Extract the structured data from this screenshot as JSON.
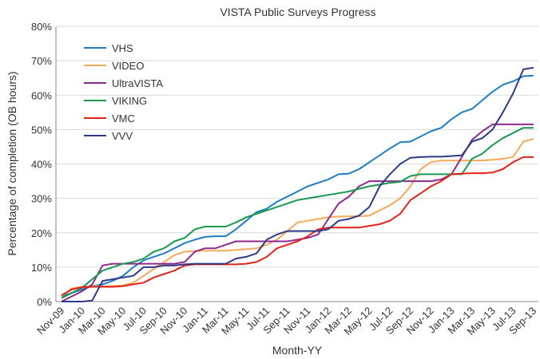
{
  "chart_data": {
    "type": "line",
    "title": "VISTA Public Surveys Progress",
    "x_label": "Month-YY",
    "y_label": "Percentage of completion (OB hours)",
    "categories": [
      "Nov-09",
      null,
      "Jan-10",
      null,
      "Mar-10",
      null,
      "May-10",
      null,
      "Jul-10",
      null,
      "Sep-10",
      null,
      "Nov-10",
      null,
      "Jan-11",
      null,
      "Mar-11",
      null,
      "May-11",
      null,
      "Jul-11",
      null,
      "Sep-11",
      null,
      "Nov-11",
      null,
      "Jan-12",
      null,
      "Mar-12",
      null,
      "May-12",
      null,
      "Jul-12",
      null,
      "Sep-12",
      null,
      "Nov-12",
      null,
      "Jan-13",
      null,
      "Mar-13",
      null,
      "May-13",
      null,
      "Jul-13",
      null,
      "Sep-13"
    ],
    "series": [
      {
        "name": "VHS",
        "color": "#1f7cc4",
        "values": [
          1.5,
          2.5,
          3.5,
          4.5,
          5,
          6,
          7.5,
          10,
          12,
          13,
          14,
          15.5,
          17,
          18,
          18.8,
          19,
          19,
          21,
          23.5,
          26,
          27,
          29,
          30.5,
          32,
          33.5,
          34.5,
          35.5,
          37,
          37.2,
          38.5,
          40.5,
          42.5,
          44.5,
          46.3,
          46.5,
          48,
          49.5,
          50.5,
          53,
          55,
          56,
          58.5,
          61,
          63,
          64,
          65.5,
          65.7
        ]
      },
      {
        "name": "VIDEO",
        "color": "#f5a95a",
        "values": [
          1.5,
          3.8,
          4.3,
          4.5,
          4.5,
          4.5,
          4.7,
          5.5,
          7.5,
          9.5,
          11.5,
          13.5,
          14.5,
          14.7,
          14.8,
          14.8,
          14.8,
          15,
          15.2,
          15.5,
          16.5,
          18,
          20.5,
          23,
          23.5,
          24,
          24.5,
          24.7,
          24.8,
          24.8,
          25,
          26.5,
          28,
          30,
          33.5,
          38.5,
          40.5,
          41,
          41,
          41,
          41,
          41,
          41.2,
          41.5,
          42,
          46.5,
          47.3
        ]
      },
      {
        "name": "UltraVISTA",
        "color": "#8e2a8e",
        "values": [
          0,
          1.5,
          3,
          5,
          10.5,
          11,
          11,
          11,
          11,
          11,
          11,
          11,
          11.5,
          14.5,
          15.5,
          15.5,
          16.5,
          17.5,
          17.5,
          17.5,
          17.5,
          17.5,
          17.5,
          18,
          18.5,
          19.5,
          24,
          28.5,
          30.5,
          33.5,
          35,
          35,
          35,
          35,
          35,
          35,
          35,
          35.5,
          37,
          42,
          47,
          49.5,
          51.5,
          51.5,
          51.5,
          51.5,
          51.5
        ]
      },
      {
        "name": "VIKING",
        "color": "#1a9850",
        "values": [
          1,
          2.5,
          4,
          6.5,
          9,
          10,
          11,
          11.5,
          12.5,
          14.5,
          15.5,
          17.5,
          18.5,
          21,
          21.8,
          21.8,
          21.8,
          23,
          24.5,
          25.5,
          26.5,
          27.5,
          28.5,
          29.5,
          30,
          30.5,
          31,
          31.5,
          32,
          32.8,
          33.5,
          34,
          34.5,
          34.8,
          36.5,
          37,
          37,
          37,
          37,
          37,
          41.5,
          43,
          45.5,
          47.5,
          49,
          50.5,
          50.5
        ]
      },
      {
        "name": "VMC",
        "color": "#e2231a",
        "values": [
          1.8,
          3.5,
          4.2,
          4.3,
          4.3,
          4.3,
          4.5,
          5,
          5.5,
          7,
          8,
          9,
          10.5,
          10.8,
          10.8,
          10.8,
          10.8,
          10.8,
          11,
          11.5,
          13,
          15.5,
          16.5,
          17.5,
          19,
          21,
          21.5,
          21.5,
          21.5,
          21.5,
          22,
          22.5,
          23.5,
          25.5,
          29.5,
          31.5,
          33.5,
          35,
          37,
          37.2,
          37.3,
          37.3,
          37.5,
          38.5,
          40.5,
          42,
          42
        ]
      },
      {
        "name": "VVV",
        "color": "#2e3a87",
        "values": [
          0,
          0,
          0,
          0.3,
          6,
          6.5,
          7,
          7.5,
          10,
          10,
          10.5,
          10.5,
          10.8,
          11,
          11,
          11,
          11,
          12.5,
          13,
          14,
          18,
          19.5,
          20.5,
          20.5,
          20.5,
          20.5,
          21,
          23.5,
          24,
          25,
          27.5,
          33.5,
          37,
          40,
          41.8,
          42,
          42.1,
          42.1,
          42.3,
          42.5,
          46.5,
          47.5,
          50,
          55,
          60.5,
          67.5,
          68
        ]
      }
    ],
    "ylim": [
      0,
      80
    ],
    "yticks": [
      {
        "value": 0,
        "label": "0%"
      },
      {
        "value": 10,
        "label": "10%"
      },
      {
        "value": 20,
        "label": "20%"
      },
      {
        "value": 30,
        "label": "30%"
      },
      {
        "value": 40,
        "label": "40%"
      },
      {
        "value": 50,
        "label": "50%"
      },
      {
        "value": 60,
        "label": "60%"
      },
      {
        "value": 70,
        "label": "70%"
      },
      {
        "value": 80,
        "label": "80%"
      }
    ],
    "grid": true,
    "legend": "upper-left"
  }
}
